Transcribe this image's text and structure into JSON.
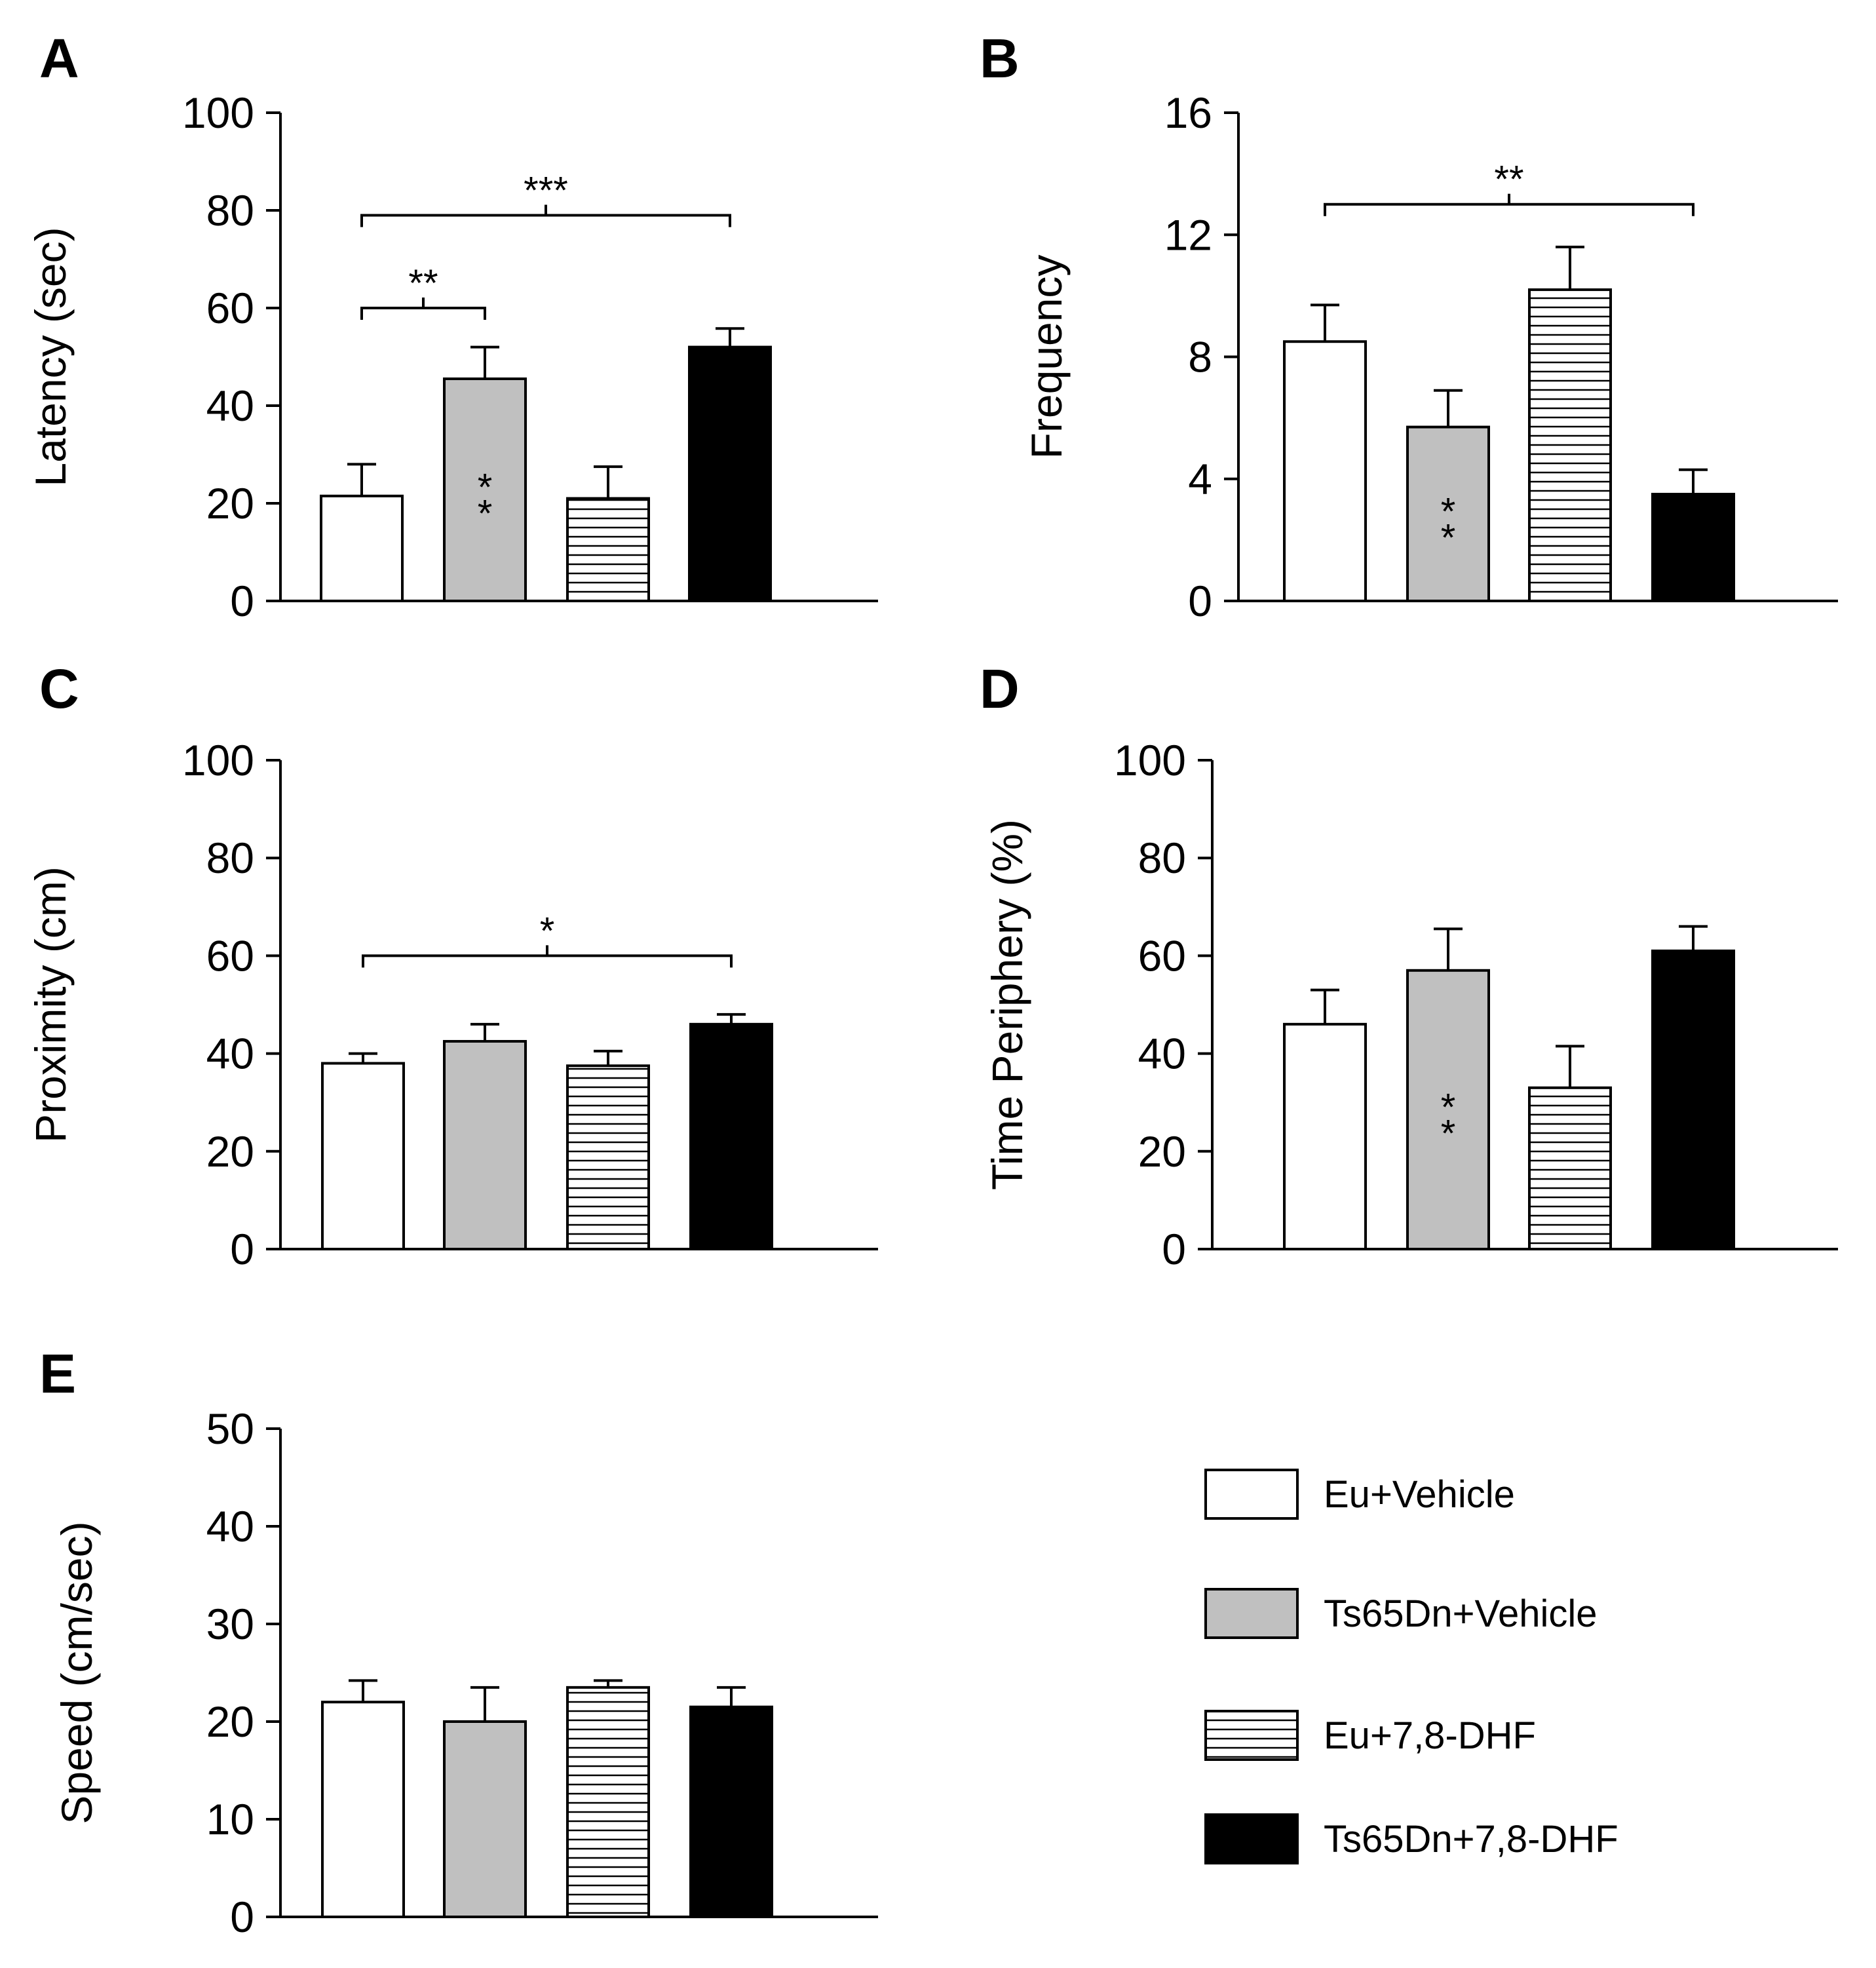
{
  "legend": {
    "entries": [
      "Eu+Vehicle",
      "Ts65Dn+Vehicle",
      "Eu+7,8-DHF",
      "Ts65Dn+7,8-DHF"
    ],
    "fills": [
      "#ffffff",
      "#c0c0c0",
      "hatch",
      "#000000"
    ]
  },
  "chart_data": [
    {
      "type": "bar",
      "panel": "A",
      "ylabel": "Latency (sec)",
      "ylim": [
        0,
        100
      ],
      "yticks": [
        "0",
        "20",
        "40",
        "60",
        "80",
        "100"
      ],
      "categories": [
        "Eu+Vehicle",
        "Ts65Dn+Vehicle",
        "Eu+7,8-DHF",
        "Ts65Dn+7,8-DHF"
      ],
      "values": [
        21.5,
        45.5,
        21,
        52
      ],
      "errors": [
        6.5,
        6.5,
        6.5,
        3.8
      ],
      "bar_stars": [
        "",
        "**",
        "",
        "***"
      ],
      "comparisons": [
        {
          "from": 0,
          "to": 1,
          "value": 60,
          "label": "**"
        },
        {
          "from": 0,
          "to": 3,
          "value": 79,
          "label": "***"
        }
      ]
    },
    {
      "type": "bar",
      "panel": "B",
      "ylabel": "Frequency",
      "ylim": [
        0,
        16
      ],
      "yticks": [
        "0",
        "4",
        "8",
        "12",
        "16"
      ],
      "categories": [
        "Eu+Vehicle",
        "Ts65Dn+Vehicle",
        "Eu+7,8-DHF",
        "Ts65Dn+7,8-DHF"
      ],
      "values": [
        8.5,
        5.7,
        10.2,
        3.5
      ],
      "errors": [
        1.2,
        1.2,
        1.4,
        0.8
      ],
      "bar_stars": [
        "",
        "**",
        "",
        "**"
      ],
      "comparisons": [
        {
          "from": 0,
          "to": 3,
          "value": 13,
          "label": "**"
        }
      ]
    },
    {
      "type": "bar",
      "panel": "C",
      "ylabel": "Proximity (cm)",
      "ylim": [
        0,
        100
      ],
      "yticks": [
        "0",
        "20",
        "40",
        "60",
        "80",
        "100"
      ],
      "categories": [
        "Eu+Vehicle",
        "Ts65Dn+Vehicle",
        "Eu+7,8-DHF",
        "Ts65Dn+7,8-DHF"
      ],
      "values": [
        38,
        42.5,
        37.5,
        46
      ],
      "errors": [
        2,
        3.5,
        3,
        2
      ],
      "bar_stars": [
        "",
        "",
        "",
        "*"
      ],
      "comparisons": [
        {
          "from": 0,
          "to": 3,
          "value": 60,
          "label": "*"
        }
      ]
    },
    {
      "type": "bar",
      "panel": "D",
      "ylabel": "Time Periphery (%)",
      "ylim": [
        0,
        100
      ],
      "yticks": [
        "0",
        "20",
        "40",
        "60",
        "80",
        "100"
      ],
      "categories": [
        "Eu+Vehicle",
        "Ts65Dn+Vehicle",
        "Eu+7,8-DHF",
        "Ts65Dn+7,8-DHF"
      ],
      "values": [
        46,
        57,
        33,
        61
      ],
      "errors": [
        7,
        8.5,
        8.5,
        5
      ],
      "bar_stars": [
        "",
        "**",
        "",
        "*"
      ],
      "comparisons": []
    },
    {
      "type": "bar",
      "panel": "E",
      "ylabel": "Speed (cm/sec)",
      "ylim": [
        0,
        50
      ],
      "yticks": [
        "0",
        "10",
        "20",
        "30",
        "40",
        "50"
      ],
      "categories": [
        "Eu+Vehicle",
        "Ts65Dn+Vehicle",
        "Eu+7,8-DHF",
        "Ts65Dn+7,8-DHF"
      ],
      "values": [
        22,
        20,
        23.5,
        21.5
      ],
      "errors": [
        2.2,
        3.5,
        0.7,
        2
      ],
      "bar_stars": [
        "",
        "",
        "",
        ""
      ],
      "comparisons": []
    }
  ]
}
